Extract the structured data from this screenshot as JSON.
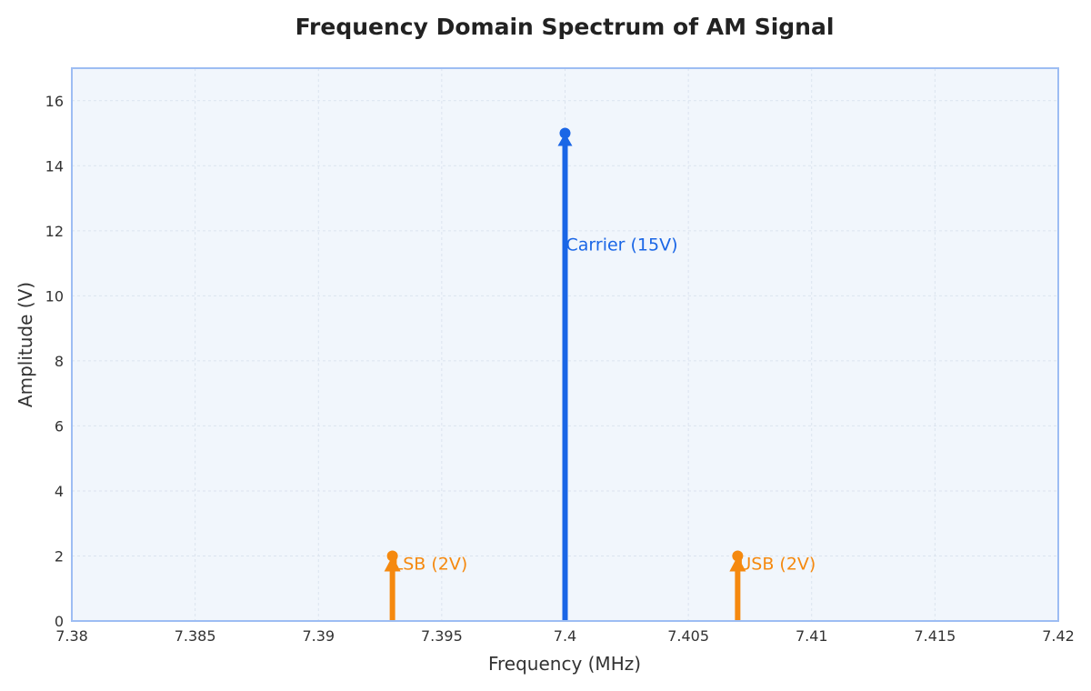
{
  "chart_data": {
    "type": "stem",
    "title": "Frequency Domain Spectrum of AM Signal",
    "xlabel": "Frequency (MHz)",
    "ylabel": "Amplitude (V)",
    "xlim": [
      7.38,
      7.42
    ],
    "ylim": [
      0,
      17
    ],
    "x_ticks": [
      "7.38",
      "7.385",
      "7.39",
      "7.395",
      "7.4",
      "7.405",
      "7.41",
      "7.415",
      "7.42"
    ],
    "x_tick_values": [
      7.38,
      7.385,
      7.39,
      7.395,
      7.4,
      7.405,
      7.41,
      7.415,
      7.42
    ],
    "y_ticks": [
      "0",
      "2",
      "4",
      "6",
      "8",
      "10",
      "12",
      "14",
      "16"
    ],
    "y_tick_values": [
      0,
      2,
      4,
      6,
      8,
      10,
      12,
      14,
      16
    ],
    "grid": true,
    "series": [
      {
        "x": 7.393,
        "y": 2,
        "label": "LSB (2V)",
        "color": "#f5890f"
      },
      {
        "x": 7.4,
        "y": 15,
        "label": "Carrier (15V)",
        "color": "#1a66e6"
      },
      {
        "x": 7.407,
        "y": 2,
        "label": "USB (2V)",
        "color": "#f5890f"
      }
    ],
    "colors": {
      "plot_background": "#f1f6fc",
      "plot_border": "#9dbdf3",
      "grid": "#dbe3ee"
    }
  }
}
